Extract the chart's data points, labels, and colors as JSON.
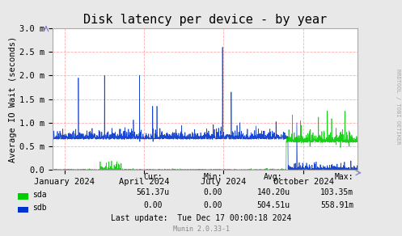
{
  "title": "Disk latency per device - by year",
  "ylabel": "Average IO Wait (seconds)",
  "background_color": "#e8e8e8",
  "plot_bg_color": "#ffffff",
  "grid_color": "#ff9999",
  "ylim": [
    0.0,
    3.0
  ],
  "ytick_labels": [
    "0.0",
    "0.5 m",
    "1.0 m",
    "1.5 m",
    "2.0 m",
    "2.5 m",
    "3.0 m"
  ],
  "xtick_labels": [
    "January 2024",
    "April 2024",
    "July 2024",
    "October 2024"
  ],
  "title_fontsize": 11,
  "axis_fontsize": 7.5,
  "tick_fontsize": 7.5,
  "sda_color": "#00cc00",
  "sdb_color": "#0033cc",
  "stats_cur_sda": "561.37u",
  "stats_min_sda": "0.00",
  "stats_avg_sda": "140.20u",
  "stats_max_sda": "103.35m",
  "stats_cur_sdb": "0.00",
  "stats_min_sdb": "0.00",
  "stats_avg_sdb": "504.51u",
  "stats_max_sdb": "558.91m",
  "last_update": "Last update:  Tue Dec 17 00:00:18 2024",
  "munin_version": "Munin 2.0.33-1",
  "rrdtool_label": "RRDTOOL / TOBI OETIKER"
}
